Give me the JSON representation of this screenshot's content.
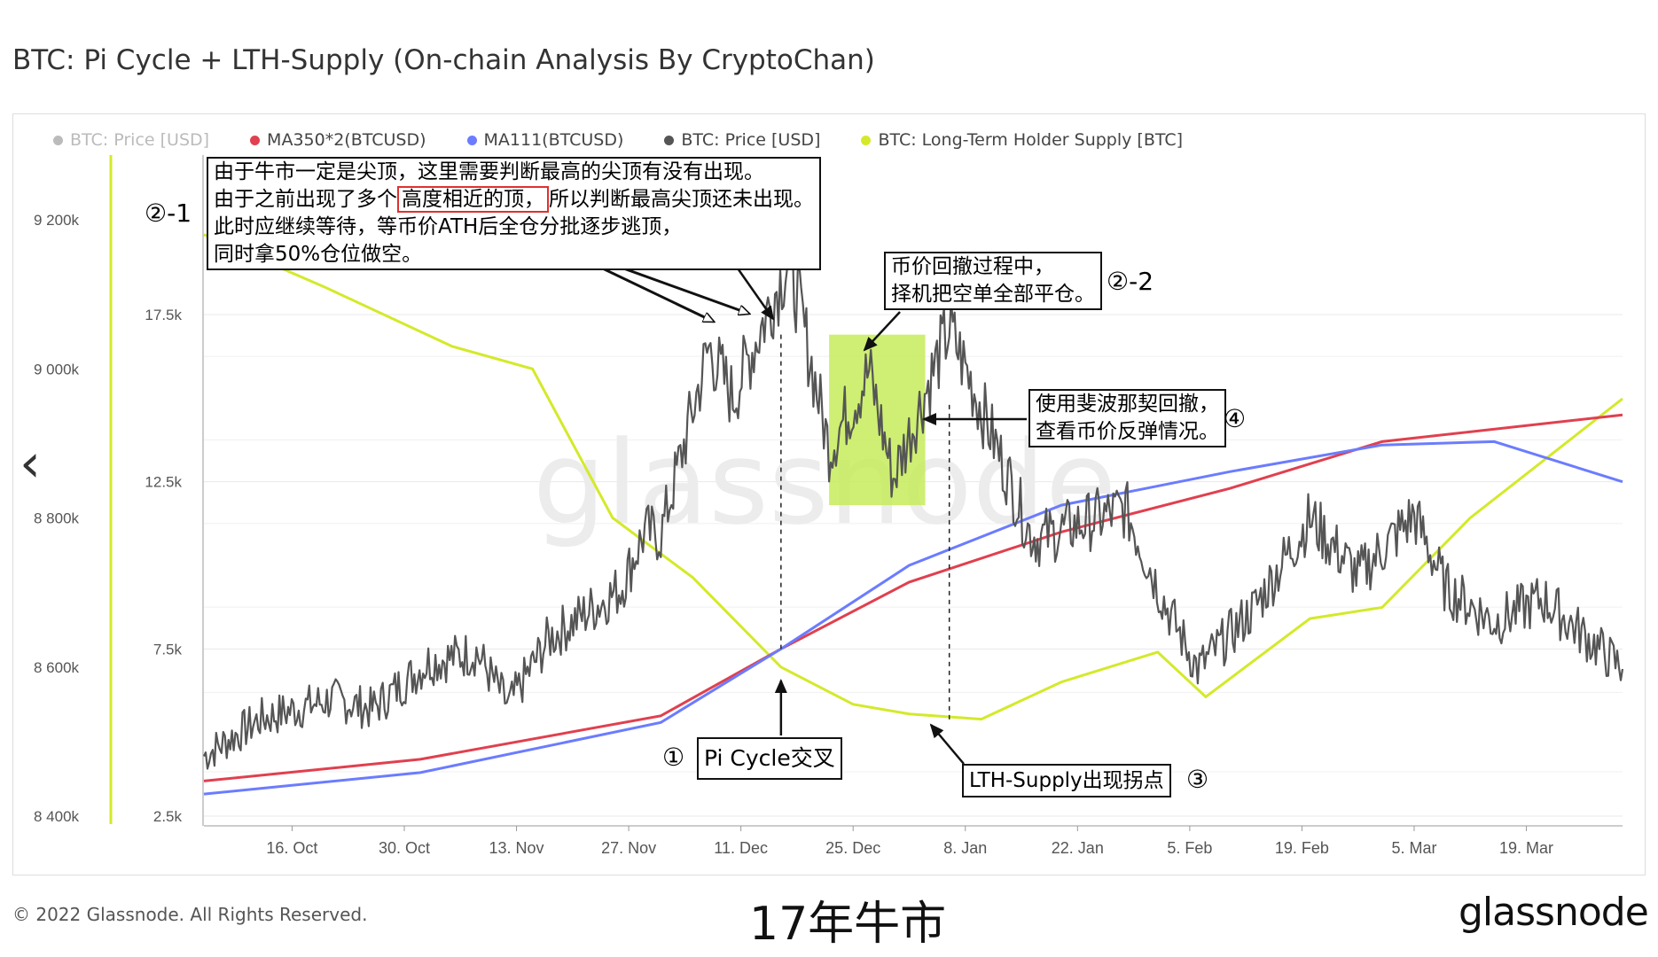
{
  "title": "BTC: Pi Cycle + LTH-Supply  (On-chain Analysis By CryptoChan)",
  "legend": [
    {
      "label": "BTC: Price [USD]",
      "color": "#bbbbbb",
      "faded": true
    },
    {
      "label": "MA350*2(BTCUSD)",
      "color": "#e0404f"
    },
    {
      "label": "MA111(BTCUSD)",
      "color": "#6b7cff"
    },
    {
      "label": "BTC: Price [USD]",
      "color": "#555555"
    },
    {
      "label": "BTC: Long-Term Holder Supply [BTC]",
      "color": "#d4e92a"
    }
  ],
  "annotations": {
    "main": {
      "line1": "由于牛市一定是尖顶，这里需要判断最高的尖顶有没有出现。",
      "line2_pre": "由于之前出现了多个",
      "line2_hl": "高度相近的顶，",
      "line2_post": "所以判断最高尖顶还未出现。",
      "line3": "此时应继续等待，等币价ATH后全仓分批逐步逃顶，",
      "line4": "同时拿50%仓位做空。"
    },
    "main_tag": "②-1",
    "close": {
      "line1": "币价回撤过程中，",
      "line2": "择机把空单全部平仓。"
    },
    "close_tag": "②-2",
    "fib": {
      "line1": "使用斐波那契回撤，",
      "line2": "查看币价反弹情况。"
    },
    "fib_tag": "④",
    "pi": "Pi Cycle交叉",
    "pi_tag": "①",
    "lth": "LTH-Supply出现拐点",
    "lth_tag": "③"
  },
  "chart_data": {
    "type": "line",
    "title": "BTC: Pi Cycle + LTH-Supply  (On-chain Analysis By CryptoChan)",
    "x_ticks": [
      "16. Oct",
      "30. Oct",
      "13. Nov",
      "27. Nov",
      "11. Dec",
      "25. Dec",
      "8. Jan",
      "22. Jan",
      "5. Feb",
      "19. Feb",
      "5. Mar",
      "19. Mar"
    ],
    "x_range": [
      "2017-10-05",
      "2018-03-31"
    ],
    "y_left": {
      "ticks": [
        "9 200k",
        "9 000k",
        "8 800k",
        "8 600k",
        "8 400k"
      ],
      "values": [
        9200000,
        9000000,
        8800000,
        8600000,
        8400000
      ],
      "label": ""
    },
    "y_right": {
      "ticks": [
        "17.5k",
        "12.5k",
        "7.5k",
        "2.5k"
      ],
      "values": [
        17500,
        12500,
        7500,
        2500
      ],
      "label": ""
    },
    "grid": true,
    "legend_position": "top",
    "series": [
      {
        "name": "MA350*2(BTCUSD)",
        "axis": "price",
        "color": "#e0404f",
        "points": [
          [
            "2017-10-05",
            3550
          ],
          [
            "2017-11-01",
            4200
          ],
          [
            "2017-12-01",
            5500
          ],
          [
            "2017-12-16",
            7500
          ],
          [
            "2018-01-01",
            9500
          ],
          [
            "2018-01-20",
            11000
          ],
          [
            "2018-02-10",
            12300
          ],
          [
            "2018-03-01",
            13700
          ],
          [
            "2018-03-31",
            14500
          ]
        ]
      },
      {
        "name": "MA111(BTCUSD)",
        "axis": "price",
        "color": "#6b7cff",
        "points": [
          [
            "2017-10-05",
            3160
          ],
          [
            "2017-11-01",
            3800
          ],
          [
            "2017-12-01",
            5300
          ],
          [
            "2017-12-16",
            7500
          ],
          [
            "2018-01-01",
            10000
          ],
          [
            "2018-01-20",
            11800
          ],
          [
            "2018-02-10",
            12800
          ],
          [
            "2018-03-01",
            13600
          ],
          [
            "2018-03-15",
            13700
          ],
          [
            "2018-03-31",
            12500
          ]
        ]
      },
      {
        "name": "BTC: Price [USD]",
        "axis": "price",
        "color": "#555555",
        "points": [
          [
            "2017-10-05",
            4300
          ],
          [
            "2017-10-12",
            5400
          ],
          [
            "2017-10-21",
            6000
          ],
          [
            "2017-10-26",
            5700
          ],
          [
            "2017-11-02",
            7100
          ],
          [
            "2017-11-08",
            7400
          ],
          [
            "2017-11-12",
            5800
          ],
          [
            "2017-11-17",
            7800
          ],
          [
            "2017-11-26",
            9300
          ],
          [
            "2017-11-29",
            11000
          ],
          [
            "2017-12-01",
            10900
          ],
          [
            "2017-12-07",
            16500
          ],
          [
            "2017-12-10",
            15000
          ],
          [
            "2017-12-17",
            19200
          ],
          [
            "2017-12-22",
            13500
          ],
          [
            "2017-12-27",
            15800
          ],
          [
            "2017-12-30",
            12600
          ],
          [
            "2018-01-06",
            17100
          ],
          [
            "2018-01-10",
            14700
          ],
          [
            "2018-01-16",
            11000
          ],
          [
            "2018-01-17",
            10800
          ],
          [
            "2018-01-28",
            11700
          ],
          [
            "2018-02-02",
            8800
          ],
          [
            "2018-02-06",
            6900
          ],
          [
            "2018-02-13",
            8700
          ],
          [
            "2018-02-20",
            11400
          ],
          [
            "2018-02-26",
            9700
          ],
          [
            "2018-03-05",
            11500
          ],
          [
            "2018-03-09",
            9300
          ],
          [
            "2018-03-15",
            8300
          ],
          [
            "2018-03-21",
            9000
          ],
          [
            "2018-03-31",
            6900
          ]
        ]
      },
      {
        "name": "BTC: Long-Term Holder Supply [BTC]",
        "axis": "supply",
        "color": "#d4e92a",
        "points": [
          [
            "2017-10-05",
            9180000
          ],
          [
            "2017-10-20",
            9110000
          ],
          [
            "2017-11-05",
            9030000
          ],
          [
            "2017-11-15",
            9000000
          ],
          [
            "2017-11-25",
            8800000
          ],
          [
            "2017-12-05",
            8720000
          ],
          [
            "2017-12-16",
            8600000
          ],
          [
            "2017-12-25",
            8550000
          ],
          [
            "2018-01-01",
            8537000
          ],
          [
            "2018-01-10",
            8530000
          ],
          [
            "2018-01-20",
            8580000
          ],
          [
            "2018-02-01",
            8620000
          ],
          [
            "2018-02-07",
            8560000
          ],
          [
            "2018-02-20",
            8665000
          ],
          [
            "2018-03-01",
            8680000
          ],
          [
            "2018-03-12",
            8800000
          ],
          [
            "2018-03-31",
            8960000
          ]
        ]
      }
    ]
  }
}
